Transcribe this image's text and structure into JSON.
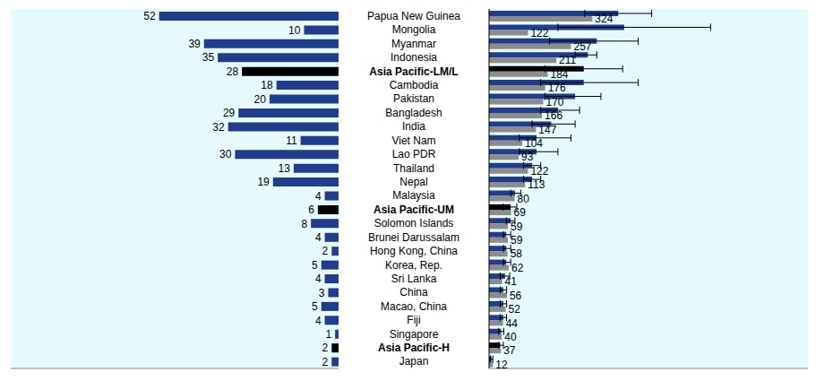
{
  "chart_data": [
    {
      "type": "bar",
      "orientation": "horizontal",
      "values": [
        52,
        10,
        39,
        35,
        28,
        18,
        20,
        29,
        32,
        11,
        30,
        13,
        19,
        4,
        6,
        8,
        4,
        2,
        5,
        4,
        3,
        5,
        4,
        1,
        2,
        2
      ],
      "colors": [
        "#1f3d8c",
        "#1f3d8c",
        "#1f3d8c",
        "#1f3d8c",
        "#000000",
        "#1f3d8c",
        "#1f3d8c",
        "#1f3d8c",
        "#1f3d8c",
        "#1f3d8c",
        "#1f3d8c",
        "#1f3d8c",
        "#1f3d8c",
        "#1f3d8c",
        "#000000",
        "#1f3d8c",
        "#1f3d8c",
        "#1f3d8c",
        "#1f3d8c",
        "#1f3d8c",
        "#1f3d8c",
        "#1f3d8c",
        "#1f3d8c",
        "#1f3d8c",
        "#000000",
        "#1f3d8c"
      ],
      "xlim": [
        95,
        0
      ],
      "xticks": [],
      "tick_labels": false,
      "data_labels": true,
      "grid": false
    },
    {
      "type": "bar",
      "orientation": "horizontal",
      "categories": [
        "Papua New Guinea",
        "Mongolia",
        "Myanmar",
        "Indonesia",
        "Asia Pacific-LM/L",
        "Cambodia",
        "Pakistan",
        "Bangladesh",
        "India",
        "Viet Nam",
        "Lao PDR",
        "Thailand",
        "Nepal",
        "Malaysia",
        "Asia Pacific-UM",
        "Solomon Islands",
        "Brunei Darussalam",
        "Hong Kong, China",
        "Korea, Rep.",
        "Sri Lanka",
        "China",
        "Macao, China",
        "Fiji",
        "Singapore",
        "Asia Pacific-H",
        "Japan"
      ],
      "series": [
        {
          "color": "#1f3d8c",
          "colors": [
            "#1f3d8c",
            "#1f3d8c",
            "#1f3d8c",
            "#1f3d8c",
            "#000000",
            "#1f3d8c",
            "#1f3d8c",
            "#1f3d8c",
            "#1f3d8c",
            "#1f3d8c",
            "#1f3d8c",
            "#1f3d8c",
            "#1f3d8c",
            "#1f3d8c",
            "#000000",
            "#1f3d8c",
            "#1f3d8c",
            "#1f3d8c",
            "#1f3d8c",
            "#1f3d8c",
            "#1f3d8c",
            "#1f3d8c",
            "#1f3d8c",
            "#1f3d8c",
            "#000000",
            "#1f3d8c"
          ],
          "values": [
            405,
            424,
            338,
            310,
            297,
            297,
            270,
            216,
            195,
            149,
            149,
            135,
            135,
            81,
            68,
            68,
            54,
            54,
            54,
            50,
            45,
            45,
            45,
            38,
            35,
            8
          ],
          "error": [
            [
              300,
              510
            ],
            [
              216,
              695
            ],
            [
              190,
              468
            ],
            [
              270,
              338
            ],
            [
              176,
              419
            ],
            [
              162,
              468
            ],
            [
              176,
              351
            ],
            [
              162,
              284
            ],
            [
              135,
              270
            ],
            [
              95,
              257
            ],
            [
              95,
              216
            ],
            [
              108,
              162
            ],
            [
              108,
              162
            ],
            [
              68,
              100
            ],
            [
              45,
              87
            ],
            [
              54,
              81
            ],
            [
              45,
              68
            ],
            [
              45,
              68
            ],
            [
              45,
              68
            ],
            [
              35,
              65
            ],
            [
              35,
              55
            ],
            [
              35,
              55
            ],
            [
              35,
              55
            ],
            [
              30,
              46
            ],
            [
              30,
              45
            ],
            [
              4,
              12
            ]
          ],
          "data_labels": false
        },
        {
          "color": "#8c8c8c",
          "values": [
            324,
            122,
            257,
            211,
            184,
            176,
            170,
            166,
            147,
            104,
            93,
            122,
            113,
            80,
            69,
            59,
            59,
            58,
            62,
            41,
            56,
            52,
            44,
            40,
            37,
            12
          ],
          "data_labels": true
        }
      ],
      "xlim": [
        0,
        1000
      ],
      "xticks": [],
      "tick_labels": "y",
      "grid": false
    }
  ]
}
